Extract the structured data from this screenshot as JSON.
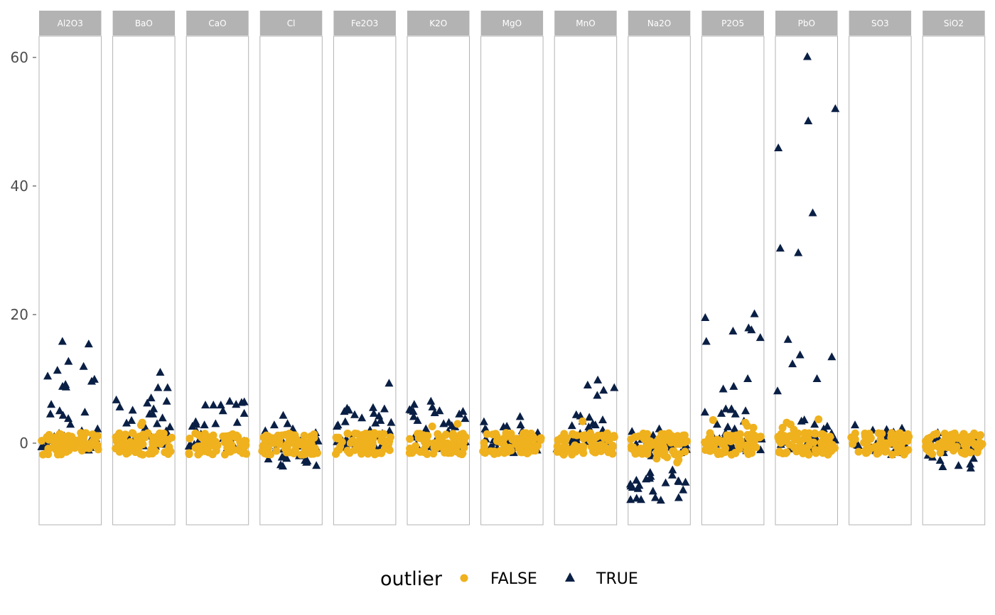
{
  "chart_data": {
    "type": "scatter",
    "title": "",
    "xlabel": "",
    "ylabel": "",
    "ylim": [
      -12.7,
      63.3
    ],
    "y_ticks": [
      0,
      20,
      40,
      60
    ],
    "facets": [
      "Al2O3",
      "BaO",
      "CaO",
      "Cl",
      "Fe2O3",
      "K2O",
      "MgO",
      "MnO",
      "Na2O",
      "P2O5",
      "PbO",
      "SO3",
      "SiO2"
    ],
    "legend": {
      "title": "outlier",
      "position": "bottom",
      "entries": [
        {
          "label": "FALSE",
          "shape": "circle",
          "color": "#EFB11D"
        },
        {
          "label": "TRUE",
          "shape": "triangle",
          "color": "#0A1F44"
        }
      ]
    },
    "points_per_facet_false": 70,
    "false_range": [
      -2,
      2
    ],
    "true_points": {
      "Al2O3": [
        10.4,
        12.7,
        11.9,
        15.8,
        11.3,
        8.8,
        9.9,
        9.6,
        9.1,
        8.7,
        15.4,
        6.0,
        4.5,
        5.0,
        4.3,
        2.9,
        2.2,
        3.8,
        4.8,
        1.0,
        -0.3,
        0.8,
        -1.1,
        1.5,
        0.2,
        -0.7,
        1.9,
        0.4
      ],
      "BaO": [
        5.3,
        6.5,
        5.1,
        11.0,
        4.5,
        7.0,
        6.2,
        5.6,
        8.6,
        8.6,
        6.7,
        4.5,
        3.5,
        3.9,
        3.0,
        2.5,
        2.4,
        1.9,
        3.1,
        0.8,
        -0.4,
        1.2,
        0.5,
        -0.8,
        0.2
      ],
      "CaO": [
        5.9,
        6.0,
        5.9,
        6.3,
        6.4,
        4.6,
        3.3,
        5.0,
        6.5,
        5.9,
        3.0,
        2.9,
        3.2,
        2.8,
        2.6,
        1.8,
        0.9,
        0.2,
        -0.5,
        1.1,
        0.6,
        -0.9,
        1.4
      ],
      "Cl": [
        3.0,
        4.3,
        2.8,
        2.2,
        1.6,
        1.9,
        0.8,
        -1.5,
        -2.5,
        -2.0,
        -3.5,
        -3.0,
        -2.8,
        -3.4,
        -2.2,
        -1.8,
        -3.6,
        -2.4,
        0.5,
        -0.4,
        1.1,
        -1.0,
        0.0,
        -2.7
      ],
      "Fe2O3": [
        9.3,
        4.4,
        5.4,
        4.9,
        3.5,
        3.2,
        5.3,
        5.5,
        5.1,
        4.6,
        3.9,
        4.2,
        3.1,
        2.6,
        2.0,
        1.5,
        0.6,
        -0.3,
        1.9,
        0.9,
        -1.0,
        3.3,
        2.8
      ],
      "K2O": [
        4.5,
        5.1,
        4.9,
        4.7,
        5.6,
        5.2,
        5.0,
        6.0,
        6.5,
        4.9,
        3.5,
        3.0,
        3.8,
        2.7,
        2.2,
        1.8,
        0.9,
        0.1,
        -0.7,
        1.4,
        2.5,
        3.2,
        4.1,
        0.5,
        -1.1
      ],
      "MgO": [
        4.1,
        3.3,
        2.8,
        2.5,
        2.0,
        1.6,
        2.2,
        1.1,
        0.5,
        -0.5,
        -1.1,
        0.8,
        1.9,
        -1.5,
        2.6,
        0.2
      ],
      "MnO": [
        8.6,
        8.2,
        7.4,
        9.8,
        9.0,
        4.2,
        4.0,
        3.4,
        3.0,
        2.7,
        2.5,
        2.8,
        2.2,
        1.5,
        0.8,
        0.2,
        -0.5,
        1.1,
        3.6,
        2.0,
        -0.9,
        4.4
      ],
      "Na2O": [
        -8.5,
        -8.8,
        -8.6,
        -5.6,
        -6.1,
        -5.5,
        -6.7,
        -7.1,
        -6.2,
        -5.0,
        -4.6,
        -5.8,
        -6.4,
        -7.3,
        -6.0,
        -8.9,
        -8.8,
        -8.5,
        -5.2,
        -6.9,
        -1.5,
        1.8,
        2.2,
        1.2,
        -2.0,
        -6.6,
        -7.5,
        -4.2,
        -5.9
      ],
      "P2O5": [
        8.4,
        17.4,
        16.4,
        10.0,
        17.9,
        17.6,
        8.8,
        15.8,
        19.5,
        20.1,
        4.6,
        5.3,
        4.5,
        4.8,
        5.0,
        5.3,
        5.2,
        2.9,
        3.4,
        2.2,
        1.6,
        1.0,
        0.4,
        -0.6,
        -1.2,
        -0.8,
        0.9,
        2.5
      ],
      "PbO": [
        60.1,
        52.0,
        50.1,
        45.9,
        30.3,
        29.6,
        35.8,
        16.1,
        12.3,
        13.4,
        13.7,
        10.0,
        8.1,
        3.6,
        3.4,
        2.9,
        2.2,
        1.5,
        0.4,
        -0.7,
        1.2,
        0.8,
        -1.0,
        2.6
      ],
      "SO3": [
        2.8,
        2.1,
        1.7,
        2.3,
        1.3,
        0.6,
        -0.4,
        -1.2,
        -0.9,
        -1.5,
        -1.8,
        0.2,
        1.0,
        -0.6,
        -1.3,
        2.0,
        0.9,
        -0.2
      ],
      "SiO2": [
        -3.3,
        -3.9,
        -3.5,
        -2.4,
        -1.9,
        -1.5,
        -3.7,
        -2.2,
        -1.2,
        -0.6,
        0.5,
        1.2,
        1.6,
        -0.9,
        -2.7,
        0.8,
        -1.4
      ]
    },
    "false_outliers_extra": {
      "Na2O": [
        -2.2,
        -3.0,
        -2.6,
        -1.8,
        -2.4,
        -1.9
      ],
      "PbO": [
        3.7,
        3.2,
        2.9,
        2.4,
        2.1
      ],
      "P2O5": [
        3.6,
        3.2,
        2.7,
        2.4
      ],
      "MnO": [
        3.4
      ],
      "BaO": [
        2.8,
        3.2
      ],
      "K2O": [
        3.0,
        2.6
      ]
    }
  }
}
